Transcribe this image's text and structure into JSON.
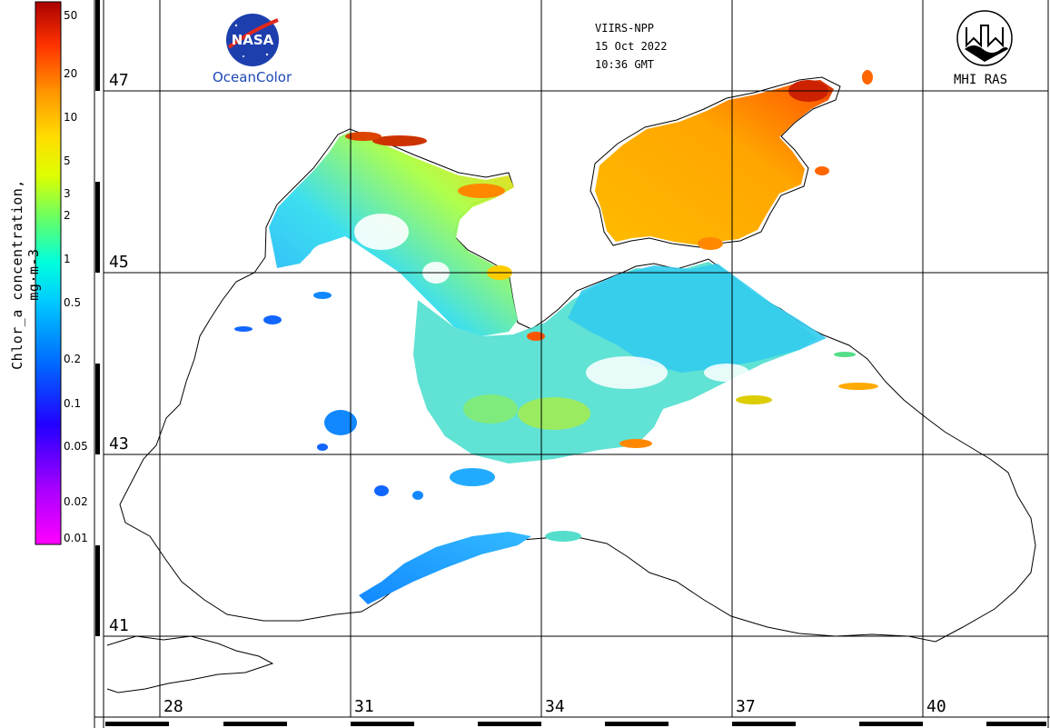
{
  "header": {
    "sensor": "VIIRS-NPP",
    "date": "15 Oct 2022",
    "time": "10:36 GMT"
  },
  "logos": {
    "nasa": {
      "badge_text": "NASA",
      "caption": "OceanColor"
    },
    "mhi": {
      "caption": "MHI RAS"
    }
  },
  "colorbar": {
    "title": "Chlor_a concentration, mg·m-3",
    "ticks": [
      "50",
      "20",
      "10",
      "5",
      "3",
      "2",
      "1",
      "0.5",
      "0.2",
      "0.1",
      "0.05",
      "0.02",
      "0.01"
    ],
    "tick_values": [
      50,
      20,
      10,
      5,
      3,
      2,
      1,
      0.5,
      0.2,
      0.1,
      0.05,
      0.02,
      0.01
    ],
    "scale": "log",
    "range": [
      0.01,
      50
    ],
    "colors": [
      "#ff00ff",
      "#9900ff",
      "#0000ff",
      "#0077ff",
      "#00ccff",
      "#00ffcc",
      "#55ff55",
      "#ccff00",
      "#ffff00",
      "#ffcc00",
      "#ff8800",
      "#ff2200",
      "#cc0000",
      "#880000"
    ]
  },
  "grid": {
    "latitudes": [
      "47",
      "45",
      "43",
      "41"
    ],
    "longitudes": [
      "28",
      "31",
      "34",
      "37",
      "40"
    ]
  },
  "colors": {
    "coastline": "#000000",
    "grid": "#000000",
    "background": "#ffffff"
  }
}
